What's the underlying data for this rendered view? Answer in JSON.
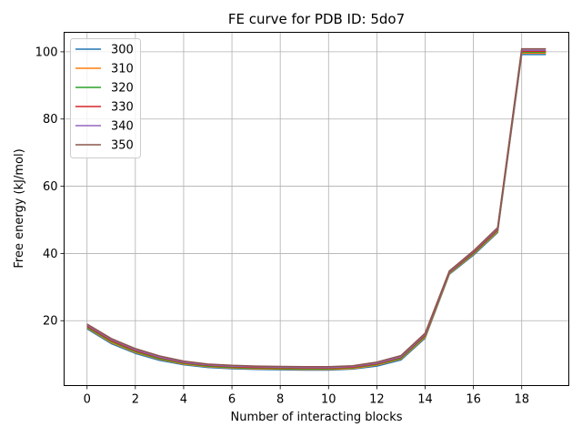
{
  "chart_data": {
    "type": "line",
    "title": "FE curve for PDB ID: 5do7",
    "xlabel": "Number of interacting blocks",
    "ylabel": "Free energy (kJ/mol)",
    "xlim": [
      -0.95,
      19.95
    ],
    "ylim": [
      0.7,
      105.8
    ],
    "xticks": [
      0,
      2,
      4,
      6,
      8,
      10,
      12,
      14,
      16,
      18
    ],
    "yticks": [
      20,
      40,
      60,
      80,
      100
    ],
    "grid": true,
    "legend_position": "top-left",
    "x": [
      0,
      1,
      2,
      3,
      4,
      5,
      6,
      7,
      8,
      9,
      10,
      11,
      12,
      13,
      14,
      15,
      16,
      17,
      18,
      19
    ],
    "series": [
      {
        "name": "300",
        "color": "#1f77b4",
        "values": [
          17.6,
          13.2,
          10.3,
          8.2,
          6.9,
          6.1,
          5.7,
          5.5,
          5.4,
          5.3,
          5.3,
          5.6,
          6.5,
          8.3,
          14.8,
          33.8,
          39.5,
          46.2,
          99.2,
          99.2
        ]
      },
      {
        "name": "310",
        "color": "#ff7f0e",
        "values": [
          17.9,
          13.5,
          10.6,
          8.5,
          7.1,
          6.3,
          5.9,
          5.7,
          5.6,
          5.5,
          5.5,
          5.8,
          6.8,
          8.6,
          15.1,
          34.0,
          39.8,
          46.5,
          99.6,
          99.6
        ]
      },
      {
        "name": "320",
        "color": "#2ca02c",
        "values": [
          18.1,
          13.8,
          10.8,
          8.7,
          7.3,
          6.5,
          6.1,
          5.9,
          5.8,
          5.7,
          5.7,
          6.0,
          7.0,
          8.8,
          15.4,
          34.2,
          40.0,
          46.8,
          99.9,
          99.9
        ]
      },
      {
        "name": "330",
        "color": "#d62728",
        "values": [
          18.4,
          14.1,
          11.1,
          9.0,
          7.5,
          6.7,
          6.3,
          6.1,
          6.0,
          5.9,
          5.9,
          6.2,
          7.2,
          9.1,
          15.7,
          34.4,
          40.3,
          47.1,
          100.2,
          100.2
        ]
      },
      {
        "name": "340",
        "color": "#9467bd",
        "values": [
          18.7,
          14.4,
          11.4,
          9.2,
          7.7,
          6.9,
          6.5,
          6.3,
          6.2,
          6.1,
          6.1,
          6.4,
          7.4,
          9.3,
          16.0,
          34.6,
          40.6,
          47.4,
          100.5,
          100.5
        ]
      },
      {
        "name": "350",
        "color": "#8c564b",
        "values": [
          19.0,
          14.7,
          11.7,
          9.5,
          8.0,
          7.1,
          6.7,
          6.5,
          6.4,
          6.3,
          6.3,
          6.6,
          7.7,
          9.6,
          16.3,
          34.8,
          40.8,
          47.7,
          100.9,
          100.9
        ]
      }
    ]
  }
}
